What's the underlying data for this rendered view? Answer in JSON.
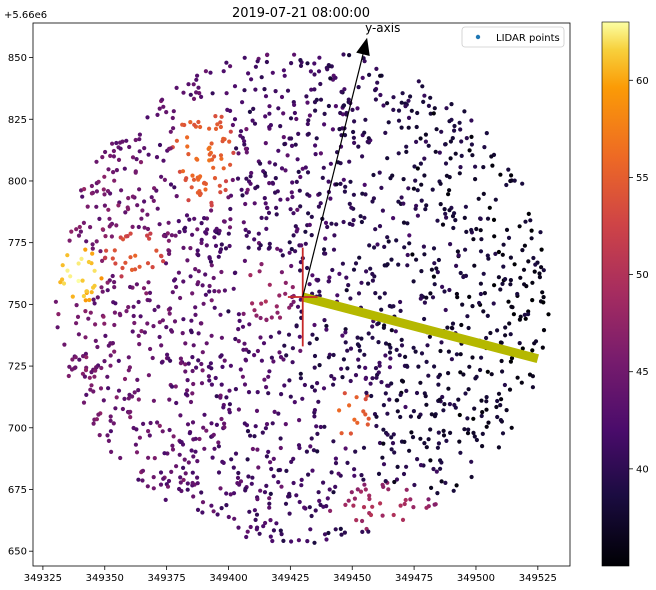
{
  "chart_data": {
    "type": "scatter",
    "title": "2019-07-21 08:00:00",
    "xlabel": "",
    "ylabel": "",
    "y_offset_label": "+5.66e6",
    "xlim": [
      349321,
      349538
    ],
    "ylim": [
      5660644,
      5660864
    ],
    "x_ticks": [
      349325,
      349350,
      349375,
      349400,
      349425,
      349450,
      349475,
      349500,
      349525
    ],
    "y_ticks": [
      650,
      675,
      700,
      725,
      750,
      775,
      800,
      825,
      850
    ],
    "legend": {
      "label": "LIDAR points",
      "placement": "top-right",
      "marker_color": "#1f77b4"
    },
    "colorbar": {
      "colormap": "inferno",
      "vmin": 35.0,
      "vmax": 63.0,
      "ticks": [
        40,
        45,
        50,
        55,
        60
      ]
    },
    "cloud": {
      "center": [
        349430,
        5660753
      ],
      "radius": 100,
      "point_count": 1900,
      "base_value_west": 46,
      "base_value_east": 36,
      "hot_regions": [
        {
          "name": "west-patch",
          "center": [
            349339,
            5660762
          ],
          "radius": [
            10,
            12
          ],
          "value": 62.5
        },
        {
          "name": "orange-west",
          "center": [
            349362,
            5660770
          ],
          "radius": [
            13,
            10
          ],
          "value": 55
        },
        {
          "name": "orange-north",
          "center": [
            349390,
            5660810
          ],
          "radius": [
            13,
            22
          ],
          "value": 56
        },
        {
          "name": "orange-south",
          "center": [
            349449,
            5660705
          ],
          "radius": [
            10,
            12
          ],
          "value": 56
        },
        {
          "name": "red-south",
          "center": [
            349462,
            5660668
          ],
          "radius": [
            22,
            10
          ],
          "value": 50
        },
        {
          "name": "red-center",
          "center": [
            349415,
            5660755
          ],
          "radius": [
            12,
            14
          ],
          "value": 49
        }
      ]
    },
    "annotations": {
      "y_axis_arrow": {
        "label": "y-axis",
        "start": [
          349430,
          5660753
        ],
        "end": [
          349456,
          5660858
        ],
        "color": "#000000"
      },
      "x_axis_bar": {
        "start": [
          349430,
          5660753
        ],
        "end": [
          349525,
          5660728
        ],
        "color": "#b5b800"
      },
      "crosshair": {
        "center": [
          349430,
          5660753
        ],
        "half_length_x": 6,
        "half_length_y": 20,
        "color": "#c62828"
      }
    }
  }
}
